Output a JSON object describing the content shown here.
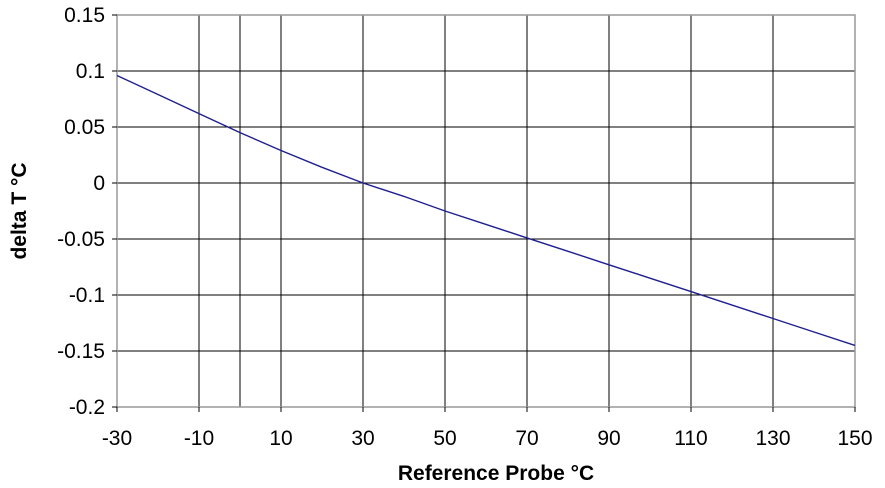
{
  "chart_data": {
    "type": "line",
    "title": "",
    "xlabel": "Reference Probe  °C",
    "ylabel": "delta T °C",
    "xlim": [
      -30,
      150
    ],
    "ylim": [
      -0.2,
      0.15
    ],
    "xticks": [
      -30,
      -10,
      10,
      30,
      50,
      70,
      90,
      110,
      130,
      150
    ],
    "xtick_labels": [
      "-30",
      "-10",
      "10",
      "30",
      "50",
      "70",
      "90",
      "110",
      "130",
      "150"
    ],
    "yticks": [
      0.15,
      0.1,
      0.05,
      0,
      -0.05,
      -0.1,
      -0.15,
      -0.2
    ],
    "ytick_labels": [
      "0.15",
      "0.1",
      "0.05",
      "0",
      "-0.05",
      "-0.1",
      "-0.15",
      "-0.2"
    ],
    "grid": true,
    "series": [
      {
        "color": "#1f1f8f",
        "x": [
          -30,
          -20,
          -10,
          0,
          10,
          20,
          30,
          40,
          50,
          60,
          70,
          80,
          90,
          100,
          110,
          120,
          130,
          140,
          150
        ],
        "y": [
          0.096,
          0.079,
          0.062,
          0.045,
          0.029,
          0.014,
          0.0,
          -0.012,
          -0.025,
          -0.037,
          -0.049,
          -0.061,
          -0.073,
          -0.085,
          -0.097,
          -0.109,
          -0.121,
          -0.133,
          -0.145
        ]
      }
    ]
  }
}
